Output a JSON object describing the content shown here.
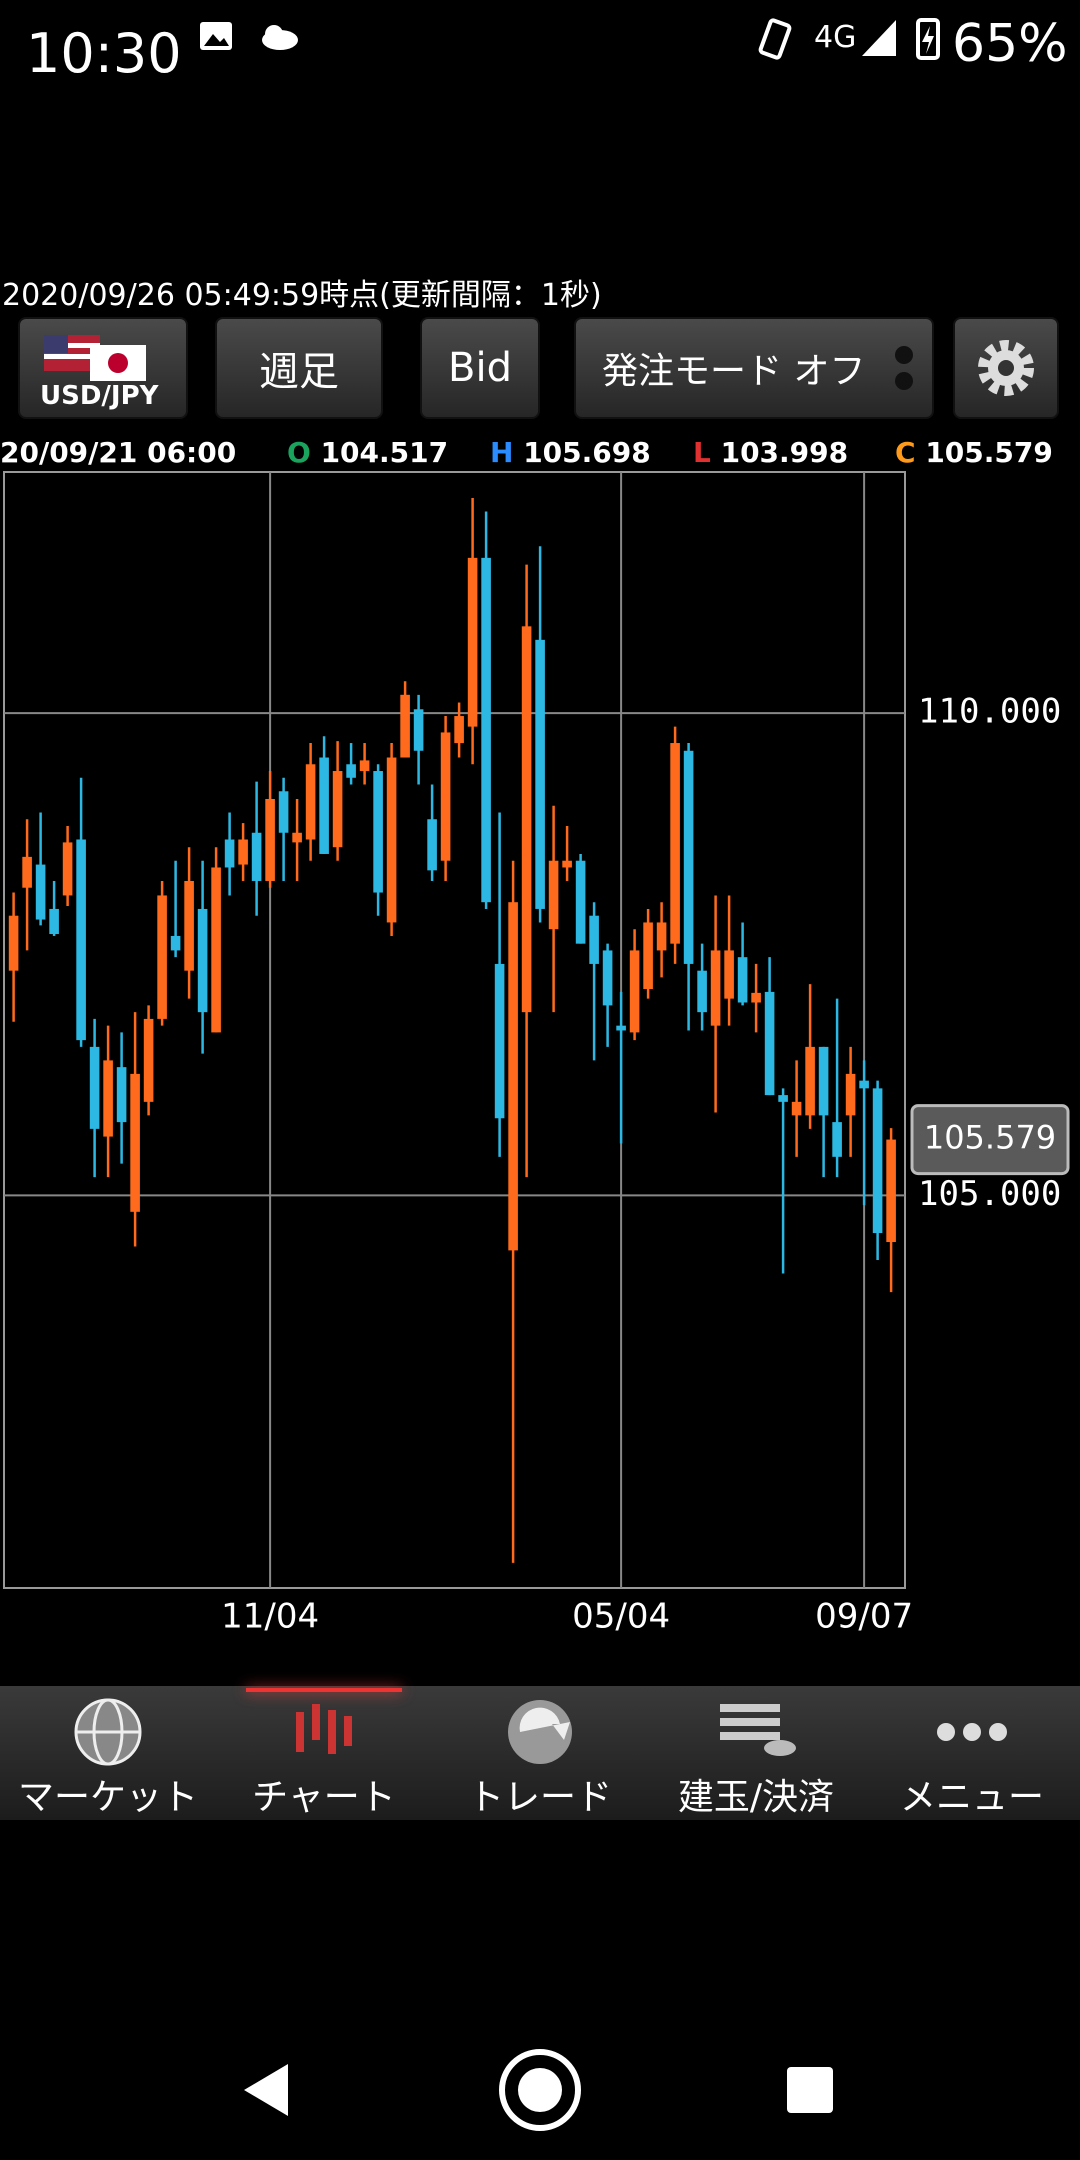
{
  "status_bar": {
    "time": "10:30",
    "network": "4G",
    "battery": "65%"
  },
  "timestamp": "2020/09/26 05:49:59時点(更新間隔：1秒)",
  "toolbar": {
    "pair": "USD/JPY",
    "period": "週足",
    "price_type": "Bid",
    "order_mode": "発注モード オフ"
  },
  "ohlc_header": {
    "date": "20/09/21 06:00",
    "open_label": "O",
    "open": "104.517",
    "high_label": "H",
    "high": "105.698",
    "low_label": "L",
    "low": "103.998",
    "close_label": "C",
    "close": "105.579"
  },
  "chart_data": {
    "type": "candlestick",
    "categories": [
      null,
      null,
      null,
      null,
      null,
      null,
      null,
      null,
      null,
      null,
      null,
      null,
      null,
      null,
      null,
      null,
      null,
      null,
      null,
      "11/04",
      null,
      null,
      null,
      null,
      null,
      null,
      null,
      null,
      null,
      null,
      null,
      null,
      null,
      null,
      null,
      null,
      null,
      null,
      null,
      null,
      null,
      null,
      null,
      null,
      null,
      "05/04",
      null,
      null,
      null,
      null,
      null,
      null,
      null,
      null,
      null,
      null,
      null,
      null,
      null,
      null,
      null,
      null,
      null,
      "09/07",
      null,
      null
    ],
    "open": [
      107.33,
      108.19,
      108.43,
      107.97,
      108.11,
      108.69,
      106.54,
      105.61,
      106.33,
      104.83,
      105.97,
      106.83,
      107.69,
      107.33,
      107.97,
      106.69,
      108.69,
      108.43,
      108.76,
      108.26,
      109.19,
      108.66,
      108.69,
      109.54,
      108.61,
      109.47,
      109.4,
      109.4,
      107.83,
      109.54,
      110.04,
      108.9,
      108.47,
      109.69,
      109.86,
      111.61,
      107.4,
      104.43,
      106.9,
      110.76,
      107.76,
      108.4,
      108.47,
      107.9,
      107.54,
      106.76,
      106.69,
      107.14,
      107.54,
      107.61,
      109.61,
      107.33,
      106.76,
      107.04,
      107.47,
      107.0,
      107.11,
      106.04,
      105.83,
      105.83,
      106.54,
      105.76,
      105.83,
      106.19,
      106.11,
      104.517
    ],
    "high": [
      108.14,
      108.9,
      108.97,
      108.26,
      108.83,
      109.33,
      106.83,
      106.76,
      106.69,
      106.9,
      106.97,
      108.26,
      108.47,
      108.61,
      108.47,
      108.61,
      108.97,
      108.86,
      109.29,
      109.4,
      109.33,
      109.11,
      109.69,
      109.76,
      109.71,
      109.69,
      109.69,
      109.47,
      109.69,
      110.33,
      110.19,
      109.26,
      109.97,
      110.11,
      112.23,
      112.09,
      108.97,
      108.47,
      111.54,
      111.73,
      109.04,
      108.83,
      108.54,
      108.04,
      107.61,
      107.11,
      107.76,
      107.97,
      108.04,
      109.86,
      109.69,
      107.61,
      108.11,
      108.11,
      107.83,
      107.4,
      107.47,
      106.11,
      106.4,
      107.19,
      106.54,
      107.04,
      106.54,
      106.4,
      106.19,
      105.698
    ],
    "low": [
      106.8,
      107.54,
      107.8,
      107.69,
      108.0,
      106.54,
      105.19,
      105.19,
      105.33,
      104.47,
      105.83,
      106.76,
      107.47,
      107.04,
      106.47,
      106.69,
      108.11,
      108.26,
      107.9,
      108.19,
      108.26,
      108.26,
      108.47,
      108.54,
      108.47,
      109.26,
      109.26,
      107.9,
      107.69,
      109.54,
      109.26,
      108.26,
      108.26,
      109.54,
      109.47,
      107.97,
      105.4,
      101.19,
      105.19,
      107.83,
      106.9,
      108.26,
      107.61,
      106.4,
      106.54,
      105.54,
      106.61,
      107.04,
      107.26,
      107.4,
      106.71,
      106.71,
      105.86,
      106.76,
      106.97,
      106.69,
      106.04,
      104.19,
      105.4,
      105.69,
      105.19,
      105.19,
      105.4,
      104.9,
      104.33,
      103.998
    ],
    "close": [
      107.9,
      108.51,
      107.86,
      107.71,
      108.66,
      106.61,
      105.69,
      106.4,
      105.76,
      106.26,
      106.83,
      108.11,
      107.54,
      108.26,
      106.9,
      108.4,
      108.4,
      108.69,
      108.26,
      109.11,
      108.76,
      108.76,
      109.47,
      108.54,
      109.4,
      109.33,
      109.51,
      108.14,
      109.54,
      110.19,
      109.61,
      108.37,
      109.8,
      109.97,
      111.61,
      108.04,
      105.8,
      108.04,
      110.9,
      107.97,
      108.47,
      108.47,
      107.61,
      107.4,
      106.97,
      106.71,
      107.54,
      107.83,
      107.83,
      109.69,
      107.4,
      106.9,
      107.54,
      107.54,
      107.0,
      107.1,
      106.04,
      105.97,
      105.97,
      106.54,
      105.83,
      105.4,
      106.26,
      106.11,
      104.61,
      105.579
    ],
    "up_color": "#ff6a1c",
    "down_color": "#2cb8e2",
    "ylim": [
      100.93,
      112.5
    ],
    "yticks": [
      {
        "value": 105,
        "label": "105.000"
      },
      {
        "value": 110,
        "label": "110.000"
      }
    ],
    "last_price": 105.579,
    "grid": true
  },
  "nav": [
    "マーケット",
    "チャート",
    "トレード",
    "建玉/決済",
    "メニュー"
  ]
}
